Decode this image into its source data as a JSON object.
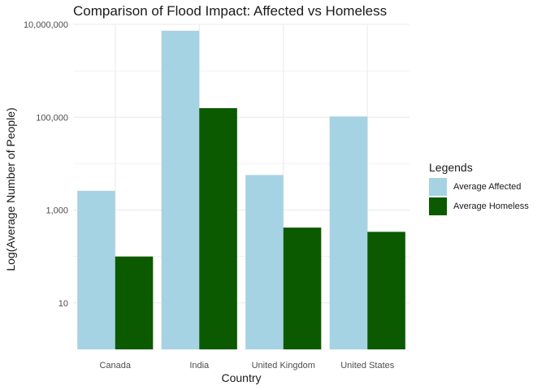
{
  "chart_data": {
    "type": "bar",
    "title": "Comparison of Flood Impact: Affected vs Homeless",
    "xlabel": "Country",
    "ylabel": "Log(Average Number of People)",
    "y_scale": "log10",
    "ylim": [
      1,
      10000000
    ],
    "y_ticks": [
      10,
      1000,
      100000,
      10000000
    ],
    "y_tick_labels": [
      "10",
      "1,000",
      "100,000",
      "10,000,000"
    ],
    "categories": [
      "Canada",
      "India",
      "United Kingdom",
      "United States"
    ],
    "series": [
      {
        "name": "Average Affected",
        "color": "#a6d3e3",
        "values": [
          2600,
          7300000,
          5700,
          104000
        ]
      },
      {
        "name": "Average Homeless",
        "color": "#0b5a00",
        "values": [
          100,
          157000,
          420,
          340
        ]
      }
    ],
    "grid": true,
    "legend": {
      "title": "Legends",
      "position": "right"
    }
  }
}
